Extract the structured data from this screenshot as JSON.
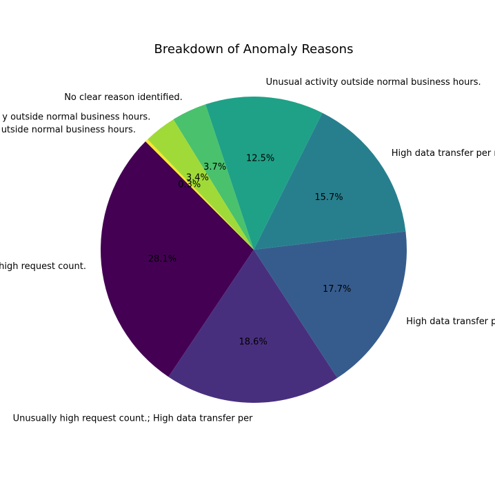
{
  "chart_data": {
    "type": "pie",
    "title": "Breakdown of Anomaly Reasons",
    "slices": [
      {
        "label": "Unusually high request count.",
        "visible_label": "y high request count.",
        "value": 28.1,
        "pct_text": "28.1%",
        "color": "#440154"
      },
      {
        "label": "Unusually high request count.; High data transfer per request.",
        "visible_label": "Unusually high request count.; High data transfer per",
        "value": 18.6,
        "pct_text": "18.6%",
        "color": "#482f7e"
      },
      {
        "label": "High data transfer per request.",
        "visible_label": "High data transfer p",
        "value": 17.7,
        "pct_text": "17.7%",
        "color": "#365c8d"
      },
      {
        "label": "High data transfer per request.",
        "visible_label": "High data transfer per req",
        "value": 15.7,
        "pct_text": "15.7%",
        "color": "#277f8e"
      },
      {
        "label": "Unusual activity outside normal business hours.",
        "visible_label": "Unusual activity outside normal business hours.",
        "value": 12.5,
        "pct_text": "12.5%",
        "color": "#1fa187"
      },
      {
        "label": "No clear reason identified.",
        "visible_label": "No clear reason identified.",
        "value": 3.7,
        "pct_text": "3.7%",
        "color": "#4ac16d"
      },
      {
        "label": "Unusual activity outside normal business hours.",
        "visible_label": "y outside normal business hours.",
        "value": 3.4,
        "pct_text": "3.4%",
        "color": "#a0da39"
      },
      {
        "label": "Unusual activity outside normal business hours.",
        "visible_label": "utside normal business hours.",
        "value": 0.3,
        "pct_text": "0.3%",
        "color": "#fde725"
      }
    ]
  }
}
